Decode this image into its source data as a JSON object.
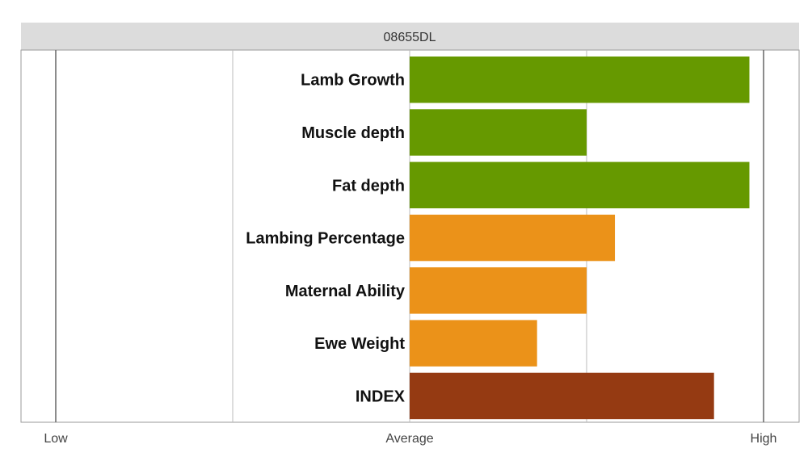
{
  "chart_data": {
    "type": "bar",
    "orientation": "horizontal",
    "title": "08655DL",
    "xlabel": "",
    "ylabel": "",
    "tick_labels": [
      {
        "label": "Low",
        "value": -1
      },
      {
        "label": "Average",
        "value": 0
      },
      {
        "label": "High",
        "value": 1
      }
    ],
    "xlim": [
      -1,
      1
    ],
    "grid": true,
    "legend": "none",
    "categories": [
      "Lamb Growth",
      "Muscle depth",
      "Fat depth",
      "Lambing Percentage",
      "Maternal Ability",
      "Ewe Weight",
      "INDEX"
    ],
    "values": [
      0.96,
      0.5,
      0.96,
      0.58,
      0.5,
      0.36,
      0.86
    ],
    "bar_colors": [
      "#669900",
      "#669900",
      "#669900",
      "#EB9219",
      "#EB9219",
      "#EB9219",
      "#953A12"
    ]
  }
}
